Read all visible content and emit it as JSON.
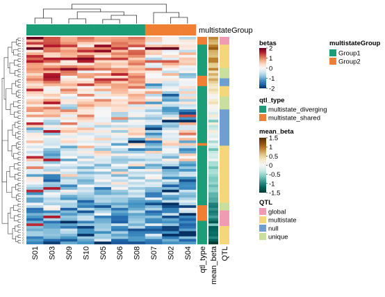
{
  "chart_data": {
    "type": "heatmap",
    "samples": [
      "S01",
      "S03",
      "S09",
      "S10",
      "S05",
      "S06",
      "S08",
      "S07",
      "S02",
      "S04"
    ],
    "column_group_title": "multistateGroup",
    "column_groups": [
      "Group1",
      "Group1",
      "Group1",
      "Group1",
      "Group1",
      "Group1",
      "Group1",
      "Group2",
      "Group2",
      "Group2"
    ],
    "row_annotation_labels": [
      "qtl_type",
      "mean_beta",
      "QTL"
    ],
    "row_label_glyph": "C",
    "n_rows": 80,
    "rows_sorted_by": "row dendrogram clustering",
    "value_scale": {
      "name": "betas",
      "min": -2,
      "max": 2,
      "ticks": [
        2,
        1,
        0,
        -1,
        -2
      ]
    },
    "mean_beta_scale": {
      "name": "mean_beta",
      "min": -1.5,
      "max": 1.5,
      "ticks": [
        1.5,
        1,
        0.5,
        0,
        -0.5,
        -1,
        -1.5
      ]
    },
    "legends": {
      "betas": {
        "title": "betas",
        "ticks": [
          "2",
          "1",
          "0",
          "-1",
          "-2"
        ],
        "colors": [
          "#67001f",
          "#b2182b",
          "#d6604d",
          "#f4a582",
          "#fddbc7",
          "#f7f7f7",
          "#d1e5f0",
          "#92c5de",
          "#4393c3",
          "#2166ac",
          "#053061"
        ]
      },
      "multistateGroup": {
        "title": "multistateGroup",
        "items": [
          {
            "label": "Group1",
            "color": "#1b9e77"
          },
          {
            "label": "Group2",
            "color": "#f07f33"
          }
        ]
      },
      "qtl_type": {
        "title": "qtl_type",
        "items": [
          {
            "label": "multistate_diverging",
            "color": "#1b9e77"
          },
          {
            "label": "multistate_shared",
            "color": "#f07f33"
          }
        ]
      },
      "mean_beta": {
        "title": "mean_beta",
        "ticks": [
          "1.5",
          "1",
          "0.5",
          "0",
          "-0.5",
          "-1",
          "-1.5"
        ],
        "colors": [
          "#543005",
          "#8c510a",
          "#bf812d",
          "#dfc27d",
          "#f6e8c3",
          "#f5f5f5",
          "#c7eae5",
          "#80cdc1",
          "#35978f",
          "#01665e",
          "#003c30"
        ]
      },
      "QTL": {
        "title": "QTL",
        "items": [
          {
            "label": "global",
            "color": "#f29ab4"
          },
          {
            "label": "multistate",
            "color": "#f5d77a"
          },
          {
            "label": "null",
            "color": "#6f9fd0"
          },
          {
            "label": "unique",
            "color": "#c8df9e"
          }
        ]
      }
    },
    "row_profiles_note": "upper rows positive betas (red) in Group1 and mixed in Group2; lower rows negative betas (blue) across samples",
    "blocks": {
      "qtl_type": [
        {
          "from": 0,
          "to": 3,
          "value": "multistate_shared"
        },
        {
          "from": 3,
          "to": 15,
          "value": "multistate_diverging"
        },
        {
          "from": 15,
          "to": 19,
          "value": "multistate_shared"
        },
        {
          "from": 19,
          "to": 41,
          "value": "multistate_diverging"
        },
        {
          "from": 41,
          "to": 42,
          "value": "multistate_shared"
        },
        {
          "from": 42,
          "to": 65,
          "value": "multistate_diverging"
        },
        {
          "from": 65,
          "to": 71,
          "value": "multistate_shared"
        },
        {
          "from": 71,
          "to": 80,
          "value": "multistate_diverging"
        }
      ],
      "QTL": [
        {
          "from": 0,
          "to": 3,
          "value": "global"
        },
        {
          "from": 3,
          "to": 12,
          "value": "multistate"
        },
        {
          "from": 12,
          "to": 16,
          "value": "unique"
        },
        {
          "from": 16,
          "to": 19,
          "value": "null"
        },
        {
          "from": 19,
          "to": 23,
          "value": "multistate"
        },
        {
          "from": 23,
          "to": 28,
          "value": "unique"
        },
        {
          "from": 28,
          "to": 42,
          "value": "null"
        },
        {
          "from": 42,
          "to": 64,
          "value": "multistate"
        },
        {
          "from": 64,
          "to": 67,
          "value": "unique"
        },
        {
          "from": 67,
          "to": 73,
          "value": "global"
        },
        {
          "from": 73,
          "to": 80,
          "value": "multistate"
        }
      ]
    }
  }
}
